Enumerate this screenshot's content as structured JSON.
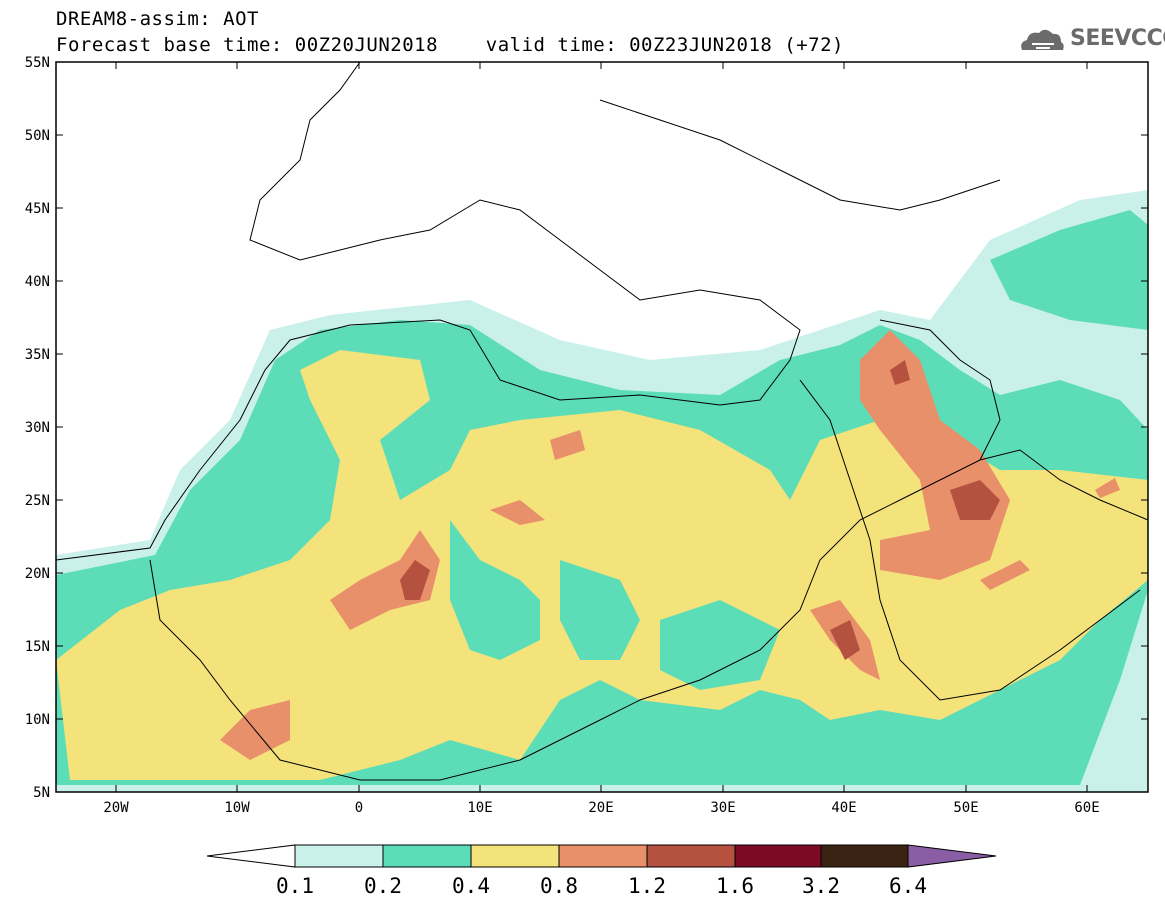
{
  "title": {
    "line1": "DREAM8-assim: AOT",
    "line2": "Forecast base time: 00Z20JUN2018    valid time: 00Z23JUN2018 (+72)"
  },
  "logo": {
    "text": "SEEVCCC"
  },
  "axes": {
    "lat_labels": [
      "55N",
      "50N",
      "45N",
      "40N",
      "35N",
      "30N",
      "25N",
      "20N",
      "15N",
      "10N",
      "5N"
    ],
    "lon_labels": [
      "20W",
      "10W",
      "0",
      "10E",
      "20E",
      "30E",
      "40E",
      "50E",
      "60E"
    ],
    "lat_range": [
      5,
      55
    ],
    "lon_range": [
      -25,
      65
    ]
  },
  "colorbar": {
    "labels": [
      "0.1",
      "0.2",
      "0.4",
      "0.8",
      "1.2",
      "1.6",
      "3.2",
      "6.4"
    ],
    "colors": [
      "#c9f1ea",
      "#5ddcb8",
      "#f4e27a",
      "#e8906a",
      "#b5513f",
      "#7d0a25",
      "#3b2313",
      "#8a5ea5"
    ]
  }
}
